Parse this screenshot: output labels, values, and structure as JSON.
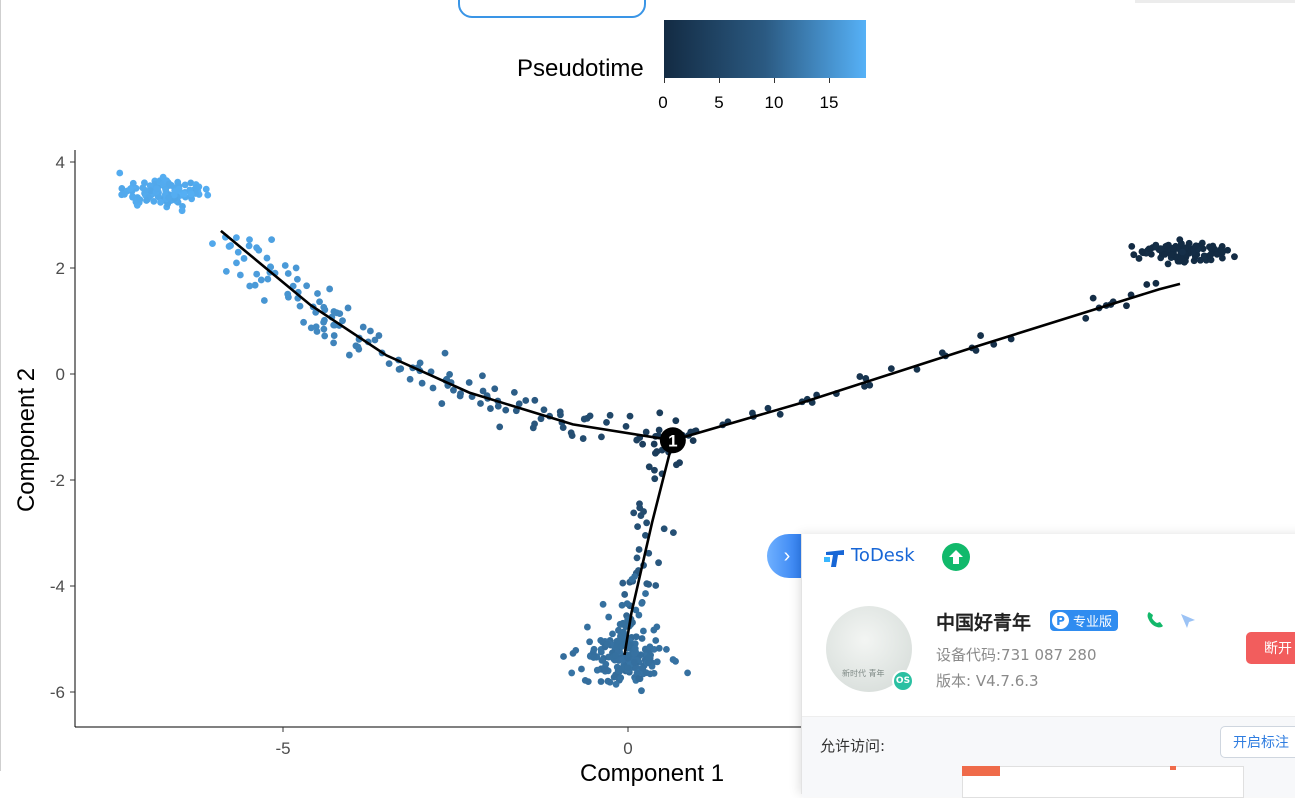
{
  "legend": {
    "title": "Pseudotime",
    "tick_labels": [
      "0",
      "5",
      "10",
      "15"
    ],
    "color_low": "#132b43",
    "color_high": "#56b1f7"
  },
  "chart_data": {
    "type": "scatter",
    "title": "",
    "xlabel": "Component 1",
    "ylabel": "Component 2",
    "x_ticks": [
      "-5",
      "0"
    ],
    "y_ticks": [
      "4",
      "2",
      "0",
      "-2",
      "-4",
      "-6"
    ],
    "xlim": [
      -8.0,
      8.0
    ],
    "ylim": [
      -6.6,
      4.2
    ],
    "branch_point": {
      "label": "1",
      "x": 0.65,
      "y": -1.25
    },
    "trajectory": [
      {
        "branch": "state-2",
        "points": [
          [
            0.65,
            -1.25
          ],
          [
            -0.8,
            -0.95
          ],
          [
            -2.3,
            -0.35
          ],
          [
            -3.5,
            0.35
          ],
          [
            -4.6,
            1.3
          ],
          [
            -5.9,
            2.7
          ]
        ]
      },
      {
        "branch": "state-3",
        "points": [
          [
            0.65,
            -1.25
          ],
          [
            0.35,
            -2.8
          ],
          [
            0.05,
            -4.5
          ],
          [
            -0.05,
            -5.3
          ]
        ]
      },
      {
        "branch": "state-1",
        "points": [
          [
            0.65,
            -1.25
          ],
          [
            2.5,
            -0.55
          ],
          [
            5.0,
            0.5
          ],
          [
            7.7,
            1.6
          ],
          [
            8.0,
            1.7
          ]
        ]
      }
    ],
    "clusters": [
      {
        "branch": "state-2",
        "x": -6.7,
        "y": 3.4,
        "pseudotime": 17.5,
        "n": 120
      },
      {
        "branch": "state-3",
        "x": -0.05,
        "y": -5.4,
        "pseudotime": 9.5,
        "n": 140
      },
      {
        "branch": "state-1",
        "x": 8.0,
        "y": 2.3,
        "pseudotime": 0.0,
        "n": 110
      }
    ],
    "grid": false,
    "legend_position": "top"
  },
  "todesk": {
    "collapse_arrow": "›",
    "app_name": "ToDesk",
    "upgrade_icon": "up-arrow-icon",
    "user_name": "中国好青年",
    "edition_badge": "专业版",
    "edition_badge_letter": "P",
    "device_code": "设备代码:731 087 280",
    "version": "版本: V4.7.6.3",
    "disconnect_label": "断开",
    "allow_access_label": "允许访问:",
    "mark_button_label": "开启标注",
    "avatar_text": "新时代 青年",
    "avatar_badge": "OS",
    "accent_color": "#2f8cf0",
    "danger_color": "#f25d5d"
  }
}
